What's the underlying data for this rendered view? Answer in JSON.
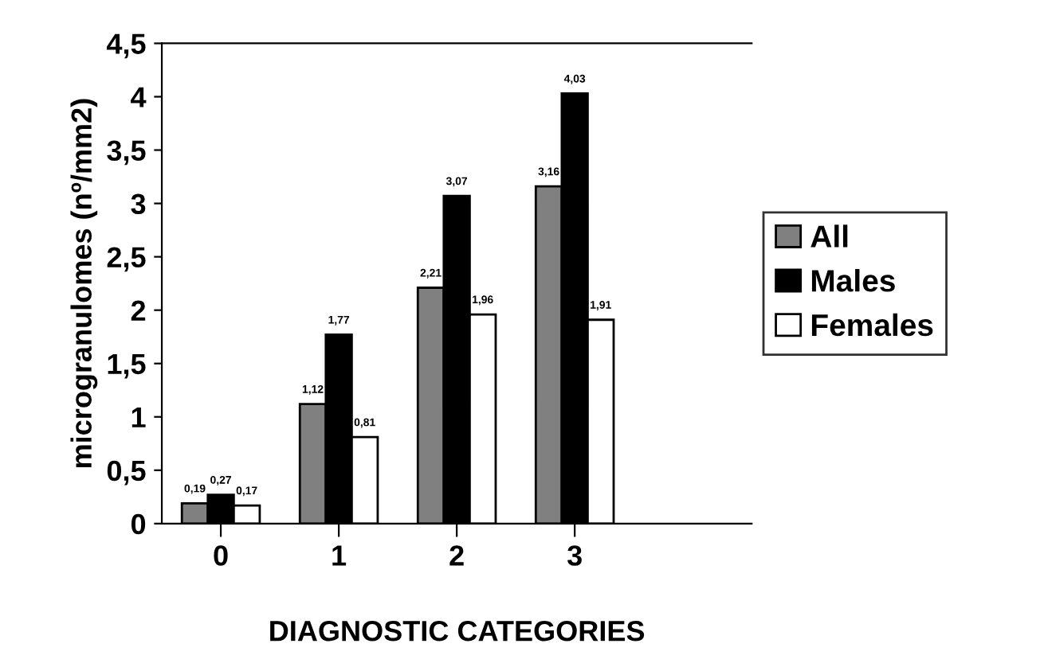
{
  "chart_data": {
    "type": "bar",
    "ylabel": "microgranulomes (nº/mm2)",
    "xlabel": "DIAGNOSTIC CATEGORIES",
    "categories": [
      "0",
      "1",
      "2",
      "3"
    ],
    "series": [
      {
        "name": "All",
        "color": "#808080",
        "values": [
          0.19,
          1.12,
          2.21,
          3.16
        ],
        "value_labels": [
          "0,19",
          "1,12",
          "2,21",
          "3,16"
        ]
      },
      {
        "name": "Males",
        "color": "#000000",
        "values": [
          0.27,
          1.77,
          3.07,
          4.03
        ],
        "value_labels": [
          "0,27",
          "1,77",
          "3,07",
          "4,03"
        ]
      },
      {
        "name": "Females",
        "color": "#ffffff",
        "values": [
          0.17,
          0.81,
          1.96,
          1.91
        ],
        "value_labels": [
          "0,17",
          "0,81",
          "1,96",
          "1,91"
        ]
      }
    ],
    "ylim": [
      0,
      4.5
    ],
    "yticks": [
      0,
      {
        "value": 0.5,
        "label": "0,5"
      },
      1,
      {
        "value": 1.5,
        "label": "1,5"
      },
      2,
      {
        "value": 2.5,
        "label": "2,5"
      },
      3,
      {
        "value": 3.5,
        "label": "3,5"
      },
      4,
      {
        "value": 4.5,
        "label": "4,5"
      }
    ],
    "legend": "right",
    "grid": false
  }
}
